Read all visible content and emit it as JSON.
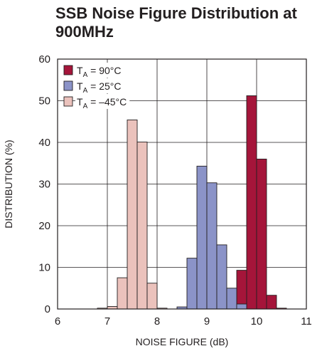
{
  "chart_data": {
    "type": "bar",
    "title": "SSB Noise Figure Distribution at 900MHz",
    "xlabel": "NOISE FIGURE (dB)",
    "ylabel": "DISTRIBUTION (%)",
    "xlim": [
      6,
      11
    ],
    "ylim": [
      0,
      60
    ],
    "xticks": [
      "6",
      "7",
      "8",
      "9",
      "10",
      "11"
    ],
    "yticks": [
      "0",
      "10",
      "20",
      "30",
      "40",
      "50",
      "60"
    ],
    "bin_width": 0.2,
    "grid": true,
    "legend": "top-left",
    "series": [
      {
        "name": "TA = 90°C",
        "legend_main": "T",
        "legend_sub": "A",
        "legend_rest": " = 90°C",
        "color": "#a5153a",
        "bins": [
          {
            "x": 9.4,
            "y": 1.0
          },
          {
            "x": 9.6,
            "y": 9.3
          },
          {
            "x": 9.8,
            "y": 51.2
          },
          {
            "x": 10.0,
            "y": 36.0
          },
          {
            "x": 10.2,
            "y": 3.3
          },
          {
            "x": 10.4,
            "y": 0.2
          }
        ]
      },
      {
        "name": "TA = 25°C",
        "legend_main": "T",
        "legend_sub": "A",
        "legend_rest": " = 25°C",
        "color": "#8b93c8",
        "bins": [
          {
            "x": 8.4,
            "y": 0.5
          },
          {
            "x": 8.6,
            "y": 12.2
          },
          {
            "x": 8.8,
            "y": 34.3
          },
          {
            "x": 9.0,
            "y": 30.3
          },
          {
            "x": 9.2,
            "y": 15.4
          },
          {
            "x": 9.4,
            "y": 5.0
          },
          {
            "x": 9.6,
            "y": 1.2
          }
        ]
      },
      {
        "name": "TA = –45°C",
        "legend_main": "T",
        "legend_sub": "A",
        "legend_rest": " = –45°C",
        "color": "#ebc2bc",
        "bins": [
          {
            "x": 6.8,
            "y": 0.2
          },
          {
            "x": 7.0,
            "y": 0.6
          },
          {
            "x": 7.2,
            "y": 7.5
          },
          {
            "x": 7.4,
            "y": 45.4
          },
          {
            "x": 7.6,
            "y": 40.1
          },
          {
            "x": 7.8,
            "y": 6.2
          },
          {
            "x": 8.0,
            "y": 0.2
          }
        ]
      }
    ]
  }
}
